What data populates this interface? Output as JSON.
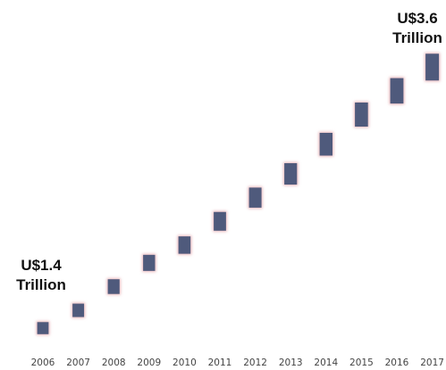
{
  "chart_data": {
    "type": "bar",
    "subtype": "floating-markers",
    "categories": [
      "2006",
      "2007",
      "2008",
      "2009",
      "2010",
      "2011",
      "2012",
      "2013",
      "2014",
      "2015",
      "2016",
      "2017"
    ],
    "values": [
      1.4,
      1.55,
      1.75,
      1.95,
      2.1,
      2.3,
      2.5,
      2.7,
      2.95,
      3.2,
      3.4,
      3.6
    ],
    "unit": "Trillion",
    "currency": "U$",
    "ylim": [
      1.25,
      3.85
    ],
    "grid": false,
    "legend": "none",
    "xlabel": "",
    "ylabel": "",
    "title": "",
    "colors": {
      "marker": "#4f5a7c",
      "marker_glow": "#e8b3b8",
      "tick_label": "#444444"
    },
    "annotations": [
      {
        "category": "2006",
        "line1": "U$1.4",
        "line2": "Trillion"
      },
      {
        "category": "2017",
        "line1": "U$3.6",
        "line2": "Trillion"
      }
    ]
  }
}
